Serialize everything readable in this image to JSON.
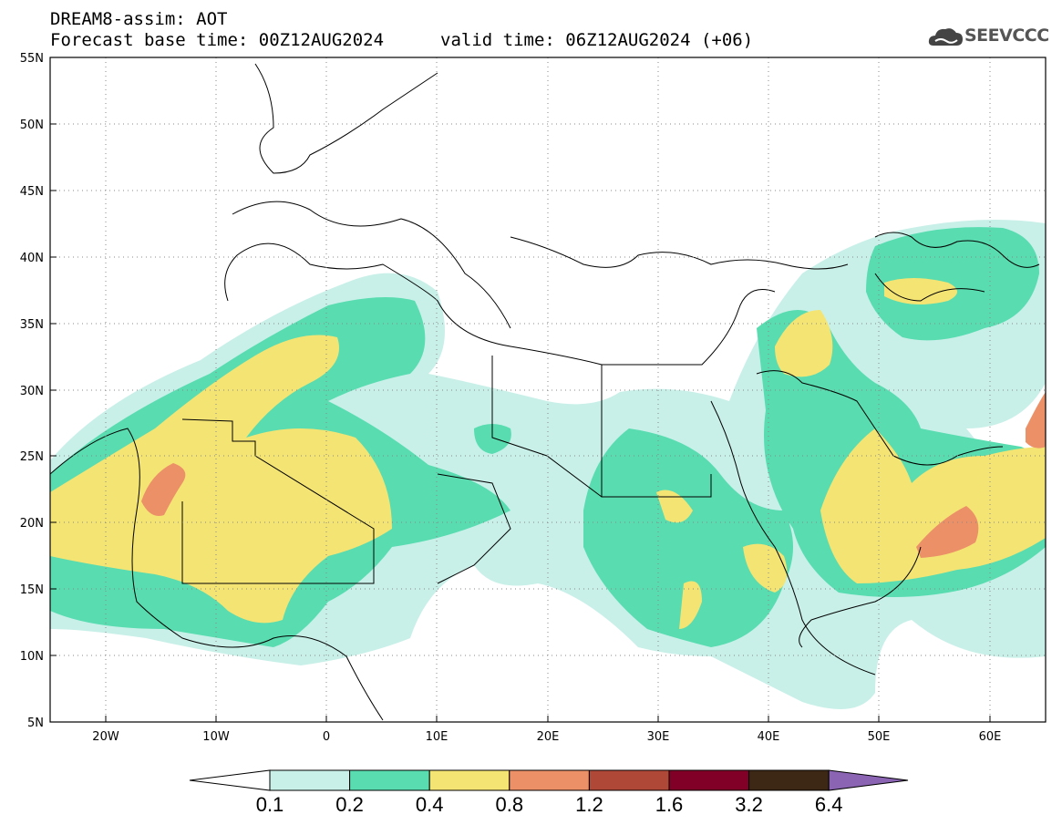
{
  "header": {
    "title_line1": "DREAM8-assim: AOT",
    "title_line2": "Forecast base time: 00Z12AUG2024",
    "valid_time": "valid time: 06Z12AUG2024 (+06)",
    "logo_text": "SEEVCCC",
    "logo_icon": "cloud-icon"
  },
  "map": {
    "lon_range": [
      -25,
      65
    ],
    "lat_range": [
      5,
      55
    ],
    "lat_labels": [
      "55N",
      "50N",
      "45N",
      "40N",
      "35N",
      "30N",
      "25N",
      "20N",
      "15N",
      "10N",
      "5N"
    ],
    "lon_labels": [
      "20W",
      "10W",
      "0",
      "10E",
      "20E",
      "30E",
      "40E",
      "50E",
      "60E"
    ],
    "gridlines": "dotted"
  },
  "colorbar": {
    "labels": [
      "0.1",
      "0.2",
      "0.4",
      "0.8",
      "1.2",
      "1.6",
      "3.2",
      "6.4"
    ],
    "colors": [
      "#c8f0e8",
      "#58dcb0",
      "#f4e474",
      "#ec9068",
      "#b04838",
      "#800028",
      "#3c2814",
      "#8c64b4"
    ],
    "under_color": "#ffffff"
  }
}
